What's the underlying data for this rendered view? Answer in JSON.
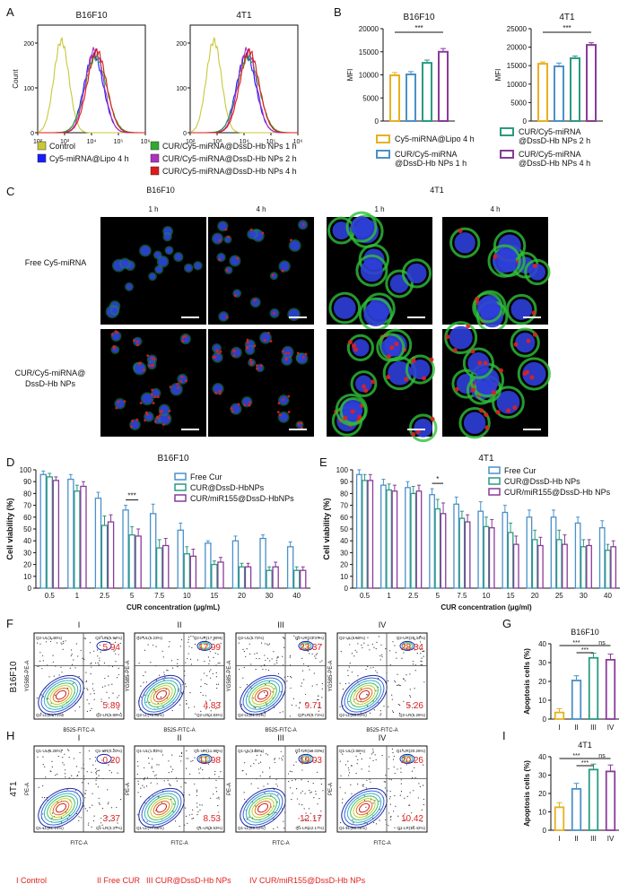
{
  "figure": {
    "panel_letters": [
      "A",
      "B",
      "C",
      "D",
      "E",
      "F",
      "G",
      "H",
      "I"
    ]
  },
  "colors": {
    "control": "#c8c83a",
    "lipo": "#1a1aff",
    "np1h": "#2eaa2e",
    "np2h": "#b030c0",
    "np4h": "#e01818",
    "bar_lipo": "#e8b020",
    "bar_1h": "#4a90c8",
    "bar_2h": "#2a9a80",
    "bar_4h": "#8a3a9a",
    "free_cur": "#4a90c8",
    "cur_np": "#2a9a80",
    "cur_mir": "#8a3a9a",
    "cond_I": "#e8b020",
    "cond_II": "#4a90c8",
    "cond_III": "#2a9a80",
    "cond_IV": "#8a3a9a",
    "red_text": "#e02020"
  },
  "panelA": {
    "titles": [
      "B16F10",
      "4T1"
    ],
    "y_label": "Count",
    "x_ticks": [
      "10²",
      "10³",
      "10⁴",
      "10⁵",
      "10⁶"
    ],
    "y_ticks": [
      "0",
      "100",
      "200"
    ],
    "legend": [
      {
        "key": "control",
        "label": "Control"
      },
      {
        "key": "lipo",
        "label": "Cy5-miRNA@Lipo 4 h"
      },
      {
        "key": "np1h",
        "label": "CUR/Cy5-miRNA@DssD-Hb NPs 1 h"
      },
      {
        "key": "np2h",
        "label": "CUR/Cy5-miRNA@DssD-Hb NPs 2 h"
      },
      {
        "key": "np4h",
        "label": "CUR/Cy5-miRNA@DssD-Hb NPs 4 h"
      }
    ]
  },
  "panelC": {
    "group_titles": [
      "B16F10",
      "4T1"
    ],
    "time_labels": [
      "1 h",
      "4 h",
      "1 h",
      "4 h"
    ],
    "row_labels": [
      "Free Cy5-miRNA",
      "CUR/Cy5-miRNA@ DssD-Hb NPs"
    ]
  },
  "panelD_legend": [
    "Free Cur",
    "CUR@DssD-HbNPs",
    "CUR/miR155@DssD-HbNPs"
  ],
  "panelE_legend": [
    "Free Cur",
    "CUR@DssD-Hb NPs",
    "CUR/miR155@DssD-Hb NPs"
  ],
  "panelF": {
    "row_label": "B16F10",
    "y_axis": "YG585-PE-A",
    "x_axis": "B525-FITC-A",
    "plots": [
      {
        "title": "I",
        "tr": "5.94",
        "br": "5.89",
        "ul": "Q2-UL(3.46%)",
        "ur": "Q2-UR(5.94%)",
        "ll": "Q2-LL(84.71%)",
        "lr": "Q2-LR(5.89%)"
      },
      {
        "title": "II",
        "tr": "17.99",
        "br": "4.83",
        "ul": "Q2-UL(5.23%)",
        "ur": "Q2-UR(17.99%)",
        "ll": "Q2-LL(71.95%)",
        "lr": "Q2-LR(4.83%)"
      },
      {
        "title": "III",
        "tr": "23.37",
        "br": "9.71",
        "ul": "Q2-UL(5.72%)",
        "ur": "Q2-UR(23.37%)",
        "ll": "Q2-LL(61.21%)",
        "lr": "Q2-LR(9.71%)"
      },
      {
        "title": "IV",
        "tr": "28.34",
        "br": "5.26",
        "ul": "Q2-UL(6.58%)",
        "ur": "Q2-UR(28.34%)",
        "ll": "Q2-LL(59.81%)",
        "lr": "Q2-LR(5.26%)"
      }
    ]
  },
  "panelH": {
    "row_label": "4T1",
    "y_axis": "PE-A",
    "x_axis": "FITC-A",
    "plots": [
      {
        "title": "I",
        "tr": "0.20",
        "br": "3.37",
        "ul": "Q1-UL(5.28%)",
        "ur": "Q1-UR(0.20%)",
        "ll": "Q1-LL(91.14%)",
        "lr": "Q1-LR(3.37%)"
      },
      {
        "title": "II",
        "tr": "11.98",
        "br": "8.53",
        "ul": "Q1-UL(1.83%)",
        "ur": "Q1-UR(11.98%)",
        "ll": "Q1-LL(77.66%)",
        "lr": "Q1-LR(8.53%)"
      },
      {
        "title": "III",
        "tr": "19.03",
        "br": "12.17",
        "ul": "Q1-UL(3.68%)",
        "ur": "Q1-UR(19.03%)",
        "ll": "Q1-LL(65.12%)",
        "lr": "Q1-LR(12.17%)"
      },
      {
        "title": "IV",
        "tr": "20.26",
        "br": "10.42",
        "ul": "Q1-UL(2.86%)",
        "ur": "Q1-UR(20.26%)",
        "ll": "Q1-LL(66.46%)",
        "lr": "Q1-LR(10.42%)"
      }
    ]
  },
  "bottom_legend": [
    {
      "numeral": "I",
      "label": "Control"
    },
    {
      "numeral": "II",
      "label": "Free CUR"
    },
    {
      "numeral": "III",
      "label": "CUR@DssD-Hb NPs"
    },
    {
      "numeral": "IV",
      "label": "CUR/miR155@DssD-Hb NPs"
    }
  ],
  "chart_data": [
    {
      "id": "B1",
      "type": "bar",
      "title": "B16F10",
      "ylabel": "MFI",
      "xlabel": "",
      "ylim": [
        0,
        20000
      ],
      "yticks": [
        0,
        5000,
        10000,
        15000,
        20000
      ],
      "categories": [
        "Cy5-miRNA@Lipo 4 h",
        "CUR/Cy5-miRNA @DssD-Hb NPs 1 h",
        "CUR/Cy5-miRNA @DssD-Hb NPs 2 h",
        "CUR/Cy5-miRNA @DssD-Hb NPs 4 h"
      ],
      "values": [
        9900,
        10100,
        12600,
        15000
      ],
      "errors": [
        600,
        600,
        600,
        700
      ],
      "significance": [
        {
          "from": 0,
          "to": 3,
          "label": "***"
        }
      ]
    },
    {
      "id": "B2",
      "type": "bar",
      "title": "4T1",
      "ylabel": "MFI",
      "xlabel": "",
      "ylim": [
        0,
        25000
      ],
      "yticks": [
        0,
        5000,
        10000,
        15000,
        20000,
        25000
      ],
      "categories": [
        "Cy5-miRNA@Lipo 4 h",
        "CUR/Cy5-miRNA @DssD-Hb NPs 1 h",
        "CUR/Cy5-miRNA @DssD-Hb NPs 2 h",
        "CUR/Cy5-miRNA @DssD-Hb NPs 4 h"
      ],
      "values": [
        15500,
        14800,
        17000,
        20600
      ],
      "errors": [
        500,
        900,
        600,
        600
      ],
      "significance": [
        {
          "from": 0,
          "to": 3,
          "label": "***"
        }
      ]
    },
    {
      "id": "D",
      "type": "bar",
      "title": "B16F10",
      "xlabel": "CUR concentration (μg/mL)",
      "ylabel": "Cell viability (%)",
      "ylim": [
        0,
        100
      ],
      "yticks": [
        0,
        10,
        20,
        30,
        40,
        50,
        60,
        70,
        80,
        90,
        100
      ],
      "categories": [
        "0.5",
        "1",
        "2.5",
        "5",
        "7.5",
        "10",
        "15",
        "20",
        "30",
        "40"
      ],
      "series": [
        {
          "name": "Free Cur",
          "values": [
            96,
            92,
            76,
            66,
            63,
            49,
            38,
            40,
            42,
            35
          ],
          "errors": [
            3,
            4,
            5,
            4,
            8,
            6,
            2,
            4,
            3,
            4
          ]
        },
        {
          "name": "CUR@DssD-HbNPs",
          "values": [
            94,
            82,
            53,
            45,
            34,
            29,
            20,
            18,
            15,
            15
          ],
          "errors": [
            3,
            5,
            8,
            7,
            7,
            6,
            3,
            3,
            3,
            3
          ]
        },
        {
          "name": "CUR/miR155@DssD-HbNPs",
          "values": [
            91,
            86,
            56,
            44,
            36,
            27,
            22,
            18,
            18,
            15
          ],
          "errors": [
            3,
            4,
            6,
            6,
            6,
            6,
            4,
            3,
            4,
            3
          ]
        }
      ],
      "significance": [
        {
          "category": "5",
          "label": "***"
        }
      ]
    },
    {
      "id": "E",
      "type": "bar",
      "title": "4T1",
      "xlabel": "CUR concentration (μg/ml)",
      "ylabel": "Cell viability (%)",
      "ylim": [
        0,
        100
      ],
      "yticks": [
        0,
        10,
        20,
        30,
        40,
        50,
        60,
        70,
        80,
        90,
        100
      ],
      "categories": [
        "0.5",
        "1",
        "2.5",
        "5",
        "7.5",
        "10",
        "15",
        "20",
        "25",
        "30",
        "40"
      ],
      "series": [
        {
          "name": "Free Cur",
          "values": [
            96,
            87,
            85,
            79,
            71,
            65,
            64,
            60,
            60,
            55,
            51
          ],
          "errors": [
            4,
            5,
            5,
            5,
            6,
            8,
            6,
            6,
            6,
            5,
            6
          ]
        },
        {
          "name": "CUR@DssD-Hb NPs",
          "values": [
            91,
            83,
            80,
            67,
            59,
            52,
            47,
            41,
            41,
            35,
            32
          ],
          "errors": [
            5,
            5,
            6,
            8,
            6,
            8,
            8,
            8,
            8,
            6,
            5
          ]
        },
        {
          "name": "CUR/miR155@DssD-Hb NPs",
          "values": [
            91,
            82,
            82,
            63,
            56,
            51,
            37,
            36,
            37,
            36,
            35
          ],
          "errors": [
            5,
            5,
            5,
            9,
            6,
            7,
            7,
            7,
            8,
            5,
            5
          ]
        }
      ],
      "significance": [
        {
          "category": "5",
          "label": "*"
        }
      ]
    },
    {
      "id": "G",
      "type": "bar",
      "title": "B16F10",
      "ylabel": "Apoptosis cells (%)",
      "xlabel": "",
      "ylim": [
        0,
        40
      ],
      "yticks": [
        0,
        10,
        20,
        30,
        40
      ],
      "categories": [
        "I",
        "II",
        "III",
        "IV"
      ],
      "values": [
        3.5,
        20.5,
        32.5,
        31.5
      ],
      "errors": [
        2,
        2.5,
        2.5,
        3
      ],
      "significance": [
        {
          "from": 0,
          "to": 2,
          "label": "***"
        },
        {
          "from": 1,
          "to": 2,
          "label": "***"
        },
        {
          "from": 2,
          "to": 3,
          "label": "ns"
        }
      ]
    },
    {
      "id": "I",
      "type": "bar",
      "title": "4T1",
      "ylabel": "Apoptosis cells (%)",
      "xlabel": "",
      "ylim": [
        0,
        40
      ],
      "yticks": [
        0,
        10,
        20,
        30,
        40
      ],
      "categories": [
        "I",
        "II",
        "III",
        "IV"
      ],
      "values": [
        12.5,
        22.5,
        33,
        32
      ],
      "errors": [
        2.5,
        3,
        3,
        3.5
      ],
      "significance": [
        {
          "from": 0,
          "to": 2,
          "label": "***"
        },
        {
          "from": 1,
          "to": 2,
          "label": "***"
        },
        {
          "from": 2,
          "to": 3,
          "label": "ns"
        }
      ]
    }
  ]
}
